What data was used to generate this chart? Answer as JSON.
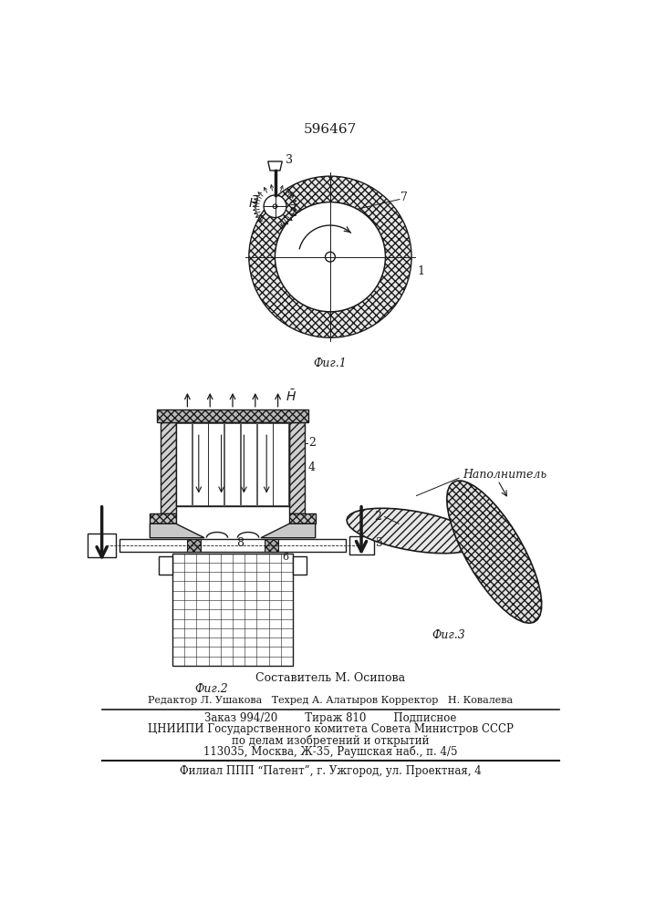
{
  "patent_number": "596467",
  "bg_color": "#ffffff",
  "line_color": "#1a1a1a",
  "footer": {
    "composer": "Составитель М. Осипова",
    "line1": "Редактор Л. Ушакова   Техред А. Алатыров Корректор   Н. Ковалева",
    "line2": "Заказ 994/20        Тираж 810        Подписное",
    "line3": "ЦНИИПИ Государственного комитета Совета Министров СССР",
    "line4": "по делам изобретений и открытий",
    "line5": "113035, Москва, Ж-35, Раушская наб., п. 4/5",
    "line6": "Филиал ППП “Патент”, г. Ужгород, ул. Проектная, 4"
  },
  "fig1_caption": "Фиг.1",
  "fig2_caption": "Фиг.2",
  "fig3_caption": "Фиг.3",
  "napolnitel": "Наполнитель"
}
